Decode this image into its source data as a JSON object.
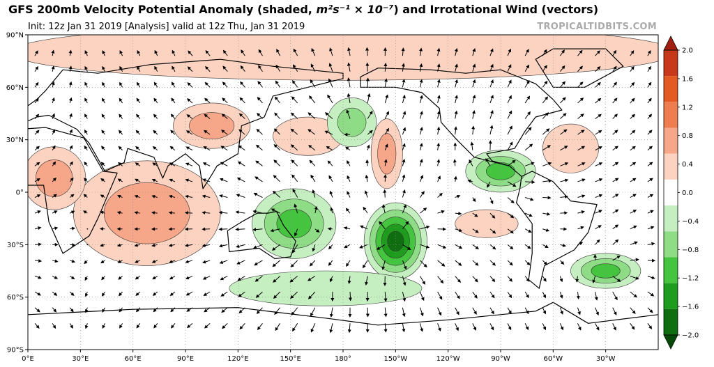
{
  "header": {
    "title_main": "GFS 200mb Velocity Potential Anomaly (shaded, ",
    "title_unit": "m²s⁻¹ × 10⁻⁷",
    "title_end": ") and Irrotational Wind (vectors)",
    "subtitle": "Init: 12z Jan 31 2019   [Analysis]   valid at 12z Thu, Jan 31 2019",
    "credit": "TROPICALTIDBITS.COM"
  },
  "map": {
    "projection": "equirectangular",
    "lon_range": [
      0,
      360
    ],
    "lat_range": [
      -90,
      90
    ],
    "lat_labels": [
      "90°N",
      "60°N",
      "30°N",
      "0°",
      "30°S",
      "60°S",
      "90°S"
    ],
    "lon_labels": [
      "0°E",
      "30°E",
      "60°E",
      "90°E",
      "120°E",
      "150°E",
      "180°",
      "150°W",
      "120°W",
      "90°W",
      "60°W",
      "30°W"
    ],
    "colors": {
      "ocean": "#ffffff",
      "coast": "#000000",
      "positive": [
        "#fcd3c0",
        "#f6a789",
        "#ee7d50",
        "#e35b22",
        "#c8391b"
      ],
      "negative": [
        "#c6efc1",
        "#8fdc87",
        "#45c43f",
        "#1f9c1d",
        "#0f6e10"
      ]
    },
    "anomalies": [
      {
        "name": "positive-band-arctic",
        "sign": "pos",
        "value": 0.3
      },
      {
        "name": "positive-indian-ocean",
        "sign": "pos",
        "value": 0.8
      },
      {
        "name": "positive-central-asia",
        "sign": "pos",
        "value": 0.9
      },
      {
        "name": "positive-africa",
        "sign": "pos",
        "value": 0.7
      },
      {
        "name": "positive-north-pacific",
        "sign": "pos",
        "value": 0.6
      },
      {
        "name": "positive-east-pacific",
        "sign": "pos",
        "value": 0.9
      },
      {
        "name": "positive-south-pacific",
        "sign": "pos",
        "value": 0.5
      },
      {
        "name": "positive-north-atlantic",
        "sign": "pos",
        "value": 0.5
      },
      {
        "name": "negative-maritime-continent",
        "sign": "neg",
        "value": -1.4
      },
      {
        "name": "negative-south-pacific-convergence",
        "sign": "neg",
        "value": -1.8
      },
      {
        "name": "negative-central-america",
        "sign": "neg",
        "value": -1.3
      },
      {
        "name": "negative-north-pacific",
        "sign": "neg",
        "value": -0.9
      },
      {
        "name": "negative-south-atlantic",
        "sign": "neg",
        "value": -1.0
      },
      {
        "name": "negative-southern-ocean",
        "sign": "neg",
        "value": -0.6
      }
    ]
  },
  "colorbar": {
    "levels": [
      "2.0",
      "1.6",
      "1.2",
      "0.8",
      "0.4",
      "0.0",
      "−0.4",
      "−0.8",
      "−1.2",
      "−1.6",
      "−2.0"
    ],
    "colors": [
      "#a11f10",
      "#c8391b",
      "#e35b22",
      "#ee7d50",
      "#f6a789",
      "#fcd3c0",
      "#ffffff",
      "#c6efc1",
      "#8fdc87",
      "#45c43f",
      "#1f9c1d",
      "#0f6e10",
      "#064a07"
    ]
  }
}
